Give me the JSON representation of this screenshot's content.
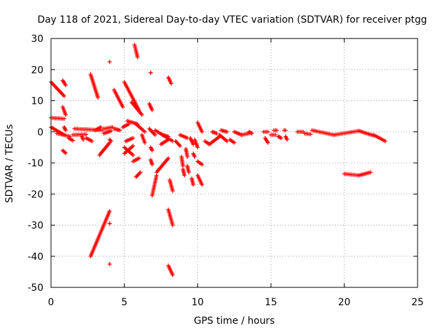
{
  "chart_data": {
    "type": "scatter",
    "title": "Day 118 of 2021, Sidereal Day-to-day VTEC variation (SDTVAR) for receiver ptgg",
    "xlabel": "GPS time / hours",
    "ylabel": "SDTVAR / TECUs",
    "xlim": [
      0,
      25
    ],
    "ylim": [
      -50,
      30
    ],
    "xticks": [
      0,
      5,
      10,
      15,
      20,
      25
    ],
    "yticks": [
      -50,
      -40,
      -30,
      -20,
      -10,
      0,
      10,
      20,
      30
    ],
    "grid": true,
    "marker": "+",
    "color": "#ff0000",
    "segments": [
      {
        "x0": 0.0,
        "y0": 16.0,
        "x1": 0.9,
        "y1": 11.5
      },
      {
        "x0": 0.0,
        "y0": 4.5,
        "x1": 0.9,
        "y1": 4.2
      },
      {
        "x0": 0.0,
        "y0": 1.5,
        "x1": 0.9,
        "y1": -1.0
      },
      {
        "x0": 0.4,
        "y0": -0.5,
        "x1": 1.3,
        "y1": -1.5
      },
      {
        "x0": 0.8,
        "y0": 16.5,
        "x1": 1.0,
        "y1": 15.0
      },
      {
        "x0": 0.8,
        "y0": 8.0,
        "x1": 1.0,
        "y1": 5.5
      },
      {
        "x0": 0.9,
        "y0": 1.5,
        "x1": 1.0,
        "y1": 0.5
      },
      {
        "x0": 0.8,
        "y0": -6.0,
        "x1": 1.0,
        "y1": -6.8
      },
      {
        "x0": 1.2,
        "y0": -2.0,
        "x1": 1.5,
        "y1": -2.8
      },
      {
        "x0": 1.6,
        "y0": 1.0,
        "x1": 3.5,
        "y1": 0.5
      },
      {
        "x0": 1.5,
        "y0": -1.0,
        "x1": 2.4,
        "y1": -0.8
      },
      {
        "x0": 2.1,
        "y0": -1.5,
        "x1": 2.2,
        "y1": -2.5
      },
      {
        "x0": 2.4,
        "y0": -2.0,
        "x1": 2.8,
        "y1": -3.0
      },
      {
        "x0": 2.7,
        "y0": 18.5,
        "x1": 3.2,
        "y1": 11.0
      },
      {
        "x0": 2.7,
        "y0": -40.0,
        "x1": 4.0,
        "y1": -25.5
      },
      {
        "x0": 3.0,
        "y0": 0.5,
        "x1": 3.4,
        "y1": 1.5
      },
      {
        "x0": 3.3,
        "y0": -7.5,
        "x1": 4.0,
        "y1": -3.5
      },
      {
        "x0": 3.6,
        "y0": 1.0,
        "x1": 4.2,
        "y1": 1.5
      },
      {
        "x0": 3.6,
        "y0": -0.5,
        "x1": 4.1,
        "y1": 0.3
      },
      {
        "x0": 4.0,
        "y0": -2.5,
        "x1": 4.1,
        "y1": -3.0
      },
      {
        "x0": 4.0,
        "y0": 22.5,
        "x1": 4.0,
        "y1": 22.5
      },
      {
        "x0": 4.0,
        "y0": -29.5,
        "x1": 4.0,
        "y1": -29.5
      },
      {
        "x0": 4.0,
        "y0": -42.5,
        "x1": 4.0,
        "y1": -42.5
      },
      {
        "x0": 4.3,
        "y0": 13.5,
        "x1": 4.9,
        "y1": 8.0
      },
      {
        "x0": 4.3,
        "y0": 1.0,
        "x1": 4.7,
        "y1": 0.5
      },
      {
        "x0": 4.9,
        "y0": 1.5,
        "x1": 5.3,
        "y1": 2.5
      },
      {
        "x0": 5.0,
        "y0": 16.0,
        "x1": 6.0,
        "y1": 7.0
      },
      {
        "x0": 5.0,
        "y0": -5.0,
        "x1": 5.6,
        "y1": -7.5
      },
      {
        "x0": 5.0,
        "y0": -7.0,
        "x1": 5.6,
        "y1": -4.5
      },
      {
        "x0": 5.1,
        "y0": -3.0,
        "x1": 5.6,
        "y1": -2.0
      },
      {
        "x0": 5.2,
        "y0": 3.5,
        "x1": 5.9,
        "y1": 2.5
      },
      {
        "x0": 5.5,
        "y0": 9.5,
        "x1": 6.2,
        "y1": 5.5
      },
      {
        "x0": 5.6,
        "y0": -9.5,
        "x1": 6.0,
        "y1": -8.5
      },
      {
        "x0": 5.7,
        "y0": 28.0,
        "x1": 5.9,
        "y1": 24.0
      },
      {
        "x0": 5.8,
        "y0": 2.5,
        "x1": 6.4,
        "y1": 0.0
      },
      {
        "x0": 5.8,
        "y0": -14.5,
        "x1": 6.1,
        "y1": -13.0
      },
      {
        "x0": 6.2,
        "y0": -1.0,
        "x1": 6.4,
        "y1": -3.5
      },
      {
        "x0": 6.7,
        "y0": 9.0,
        "x1": 6.9,
        "y1": 7.0
      },
      {
        "x0": 6.7,
        "y0": 1.0,
        "x1": 7.1,
        "y1": -1.0
      },
      {
        "x0": 6.8,
        "y0": 19.0,
        "x1": 6.8,
        "y1": 19.0
      },
      {
        "x0": 6.8,
        "y0": -5.0,
        "x1": 6.9,
        "y1": -6.0
      },
      {
        "x0": 6.8,
        "y0": -9.0,
        "x1": 6.9,
        "y1": -10.5
      },
      {
        "x0": 6.9,
        "y0": -20.5,
        "x1": 7.2,
        "y1": -14.0
      },
      {
        "x0": 7.1,
        "y0": 0.5,
        "x1": 8.3,
        "y1": -3.0
      },
      {
        "x0": 7.2,
        "y0": -13.0,
        "x1": 8.0,
        "y1": -8.5
      },
      {
        "x0": 7.5,
        "y0": -4.0,
        "x1": 8.0,
        "y1": -2.5
      },
      {
        "x0": 7.6,
        "y0": -1.0,
        "x1": 8.0,
        "y1": -1.5
      },
      {
        "x0": 8.0,
        "y0": 17.5,
        "x1": 8.2,
        "y1": 15.5
      },
      {
        "x0": 8.1,
        "y0": -15.5,
        "x1": 8.3,
        "y1": -19.0
      },
      {
        "x0": 8.0,
        "y0": -25.0,
        "x1": 8.3,
        "y1": -30.0
      },
      {
        "x0": 8.0,
        "y0": -43.0,
        "x1": 8.3,
        "y1": -46.0
      },
      {
        "x0": 8.5,
        "y0": -3.0,
        "x1": 8.8,
        "y1": -4.5
      },
      {
        "x0": 8.8,
        "y0": -1.0,
        "x1": 9.3,
        "y1": -2.0
      },
      {
        "x0": 8.9,
        "y0": -8.0,
        "x1": 9.0,
        "y1": -11.0
      },
      {
        "x0": 9.0,
        "y0": -12.0,
        "x1": 9.1,
        "y1": -14.0
      },
      {
        "x0": 9.2,
        "y0": -5.5,
        "x1": 9.3,
        "y1": -8.0
      },
      {
        "x0": 9.3,
        "y0": -11.0,
        "x1": 9.4,
        "y1": -13.0
      },
      {
        "x0": 9.5,
        "y0": -2.0,
        "x1": 9.7,
        "y1": -4.0
      },
      {
        "x0": 9.6,
        "y0": -15.0,
        "x1": 9.7,
        "y1": -17.0
      },
      {
        "x0": 9.7,
        "y0": -7.0,
        "x1": 9.8,
        "y1": -8.0
      },
      {
        "x0": 9.8,
        "y0": -2.5,
        "x1": 10.0,
        "y1": -5.0
      },
      {
        "x0": 10.0,
        "y0": 3.0,
        "x1": 10.3,
        "y1": 0.0
      },
      {
        "x0": 10.0,
        "y0": -9.5,
        "x1": 10.3,
        "y1": -10.5
      },
      {
        "x0": 10.0,
        "y0": -14.0,
        "x1": 10.3,
        "y1": -17.0
      },
      {
        "x0": 10.5,
        "y0": -3.0,
        "x1": 10.8,
        "y1": -4.0
      },
      {
        "x0": 10.8,
        "y0": -4.0,
        "x1": 11.5,
        "y1": -1.5
      },
      {
        "x0": 11.0,
        "y0": 0.0,
        "x1": 11.3,
        "y1": -0.5
      },
      {
        "x0": 11.5,
        "y0": -1.0,
        "x1": 12.0,
        "y1": -3.0
      },
      {
        "x0": 11.6,
        "y0": 0.5,
        "x1": 12.0,
        "y1": 0.0
      },
      {
        "x0": 12.2,
        "y0": -2.5,
        "x1": 12.5,
        "y1": -3.5
      },
      {
        "x0": 12.5,
        "y0": 0.0,
        "x1": 13.0,
        "y1": -1.0
      },
      {
        "x0": 13.0,
        "y0": -1.0,
        "x1": 13.5,
        "y1": -0.5
      },
      {
        "x0": 13.5,
        "y0": 0.0,
        "x1": 13.7,
        "y1": -0.5
      },
      {
        "x0": 14.5,
        "y0": 0.0,
        "x1": 14.8,
        "y1": 0.0
      },
      {
        "x0": 14.6,
        "y0": -2.0,
        "x1": 14.8,
        "y1": -3.5
      },
      {
        "x0": 15.0,
        "y0": -1.0,
        "x1": 15.3,
        "y1": -1.0
      },
      {
        "x0": 15.2,
        "y0": 0.5,
        "x1": 15.4,
        "y1": 0.5
      },
      {
        "x0": 15.5,
        "y0": -1.5,
        "x1": 15.7,
        "y1": -2.0
      },
      {
        "x0": 15.9,
        "y0": 0.5,
        "x1": 16.0,
        "y1": 0.5
      },
      {
        "x0": 16.0,
        "y0": -1.5,
        "x1": 16.1,
        "y1": -2.5
      },
      {
        "x0": 16.8,
        "y0": 0.0,
        "x1": 17.2,
        "y1": 0.0
      },
      {
        "x0": 17.3,
        "y0": -0.5,
        "x1": 17.7,
        "y1": -0.8
      },
      {
        "x0": 17.8,
        "y0": 0.5,
        "x1": 19.3,
        "y1": -1.0
      },
      {
        "x0": 19.3,
        "y0": -1.0,
        "x1": 21.0,
        "y1": 0.3
      },
      {
        "x0": 21.0,
        "y0": 0.3,
        "x1": 22.0,
        "y1": -1.2
      },
      {
        "x0": 22.0,
        "y0": -1.0,
        "x1": 22.8,
        "y1": -3.0
      },
      {
        "x0": 20.0,
        "y0": -13.5,
        "x1": 21.0,
        "y1": -14.0
      },
      {
        "x0": 21.0,
        "y0": -14.0,
        "x1": 21.8,
        "y1": -13.0
      }
    ]
  }
}
